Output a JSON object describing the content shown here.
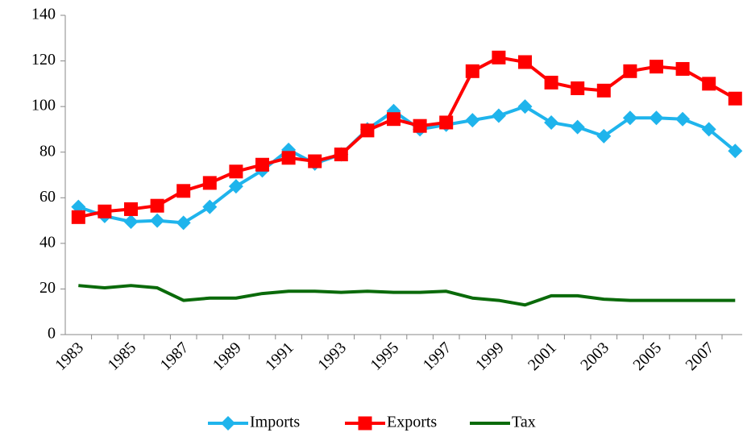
{
  "chart_data": {
    "type": "line",
    "categories": [
      "1983",
      null,
      "1985",
      null,
      "1987",
      null,
      "1989",
      null,
      "1991",
      null,
      "1993",
      null,
      "1995",
      null,
      "1997",
      null,
      "1999",
      null,
      "2001",
      null,
      "2003",
      null,
      "2005",
      null,
      "2007",
      null
    ],
    "series": [
      {
        "name": "Imports",
        "color": "#1fb4ec",
        "marker": "diamond",
        "values": [
          56,
          52,
          49.5,
          50,
          49,
          56,
          65,
          72,
          81,
          75,
          79,
          90,
          98,
          90,
          92,
          94,
          96,
          100,
          93,
          91,
          87,
          95,
          95,
          94.5,
          90,
          80.5
        ]
      },
      {
        "name": "Exports",
        "color": "#ff0000",
        "marker": "square",
        "values": [
          51.5,
          54,
          55,
          56.5,
          63,
          66.5,
          71.5,
          74.5,
          77.5,
          76,
          79,
          89.5,
          94.5,
          91.5,
          93,
          115.5,
          121.5,
          119.5,
          110.5,
          108,
          107,
          115.5,
          117.5,
          116.5,
          110,
          103.5
        ]
      },
      {
        "name": "Tax",
        "color": "#0a6a0a",
        "marker": "none",
        "values": [
          21.5,
          20.5,
          21.5,
          20.5,
          15,
          16,
          16,
          18,
          19,
          19,
          18.5,
          19,
          18.5,
          18.5,
          19,
          16,
          15,
          13,
          17,
          17,
          15.5,
          15,
          15,
          15,
          15,
          15
        ]
      }
    ],
    "ylim": [
      0,
      140
    ],
    "yticks": [
      0,
      20,
      40,
      60,
      80,
      100,
      120,
      140
    ],
    "grid": false,
    "legend": "bottom"
  }
}
